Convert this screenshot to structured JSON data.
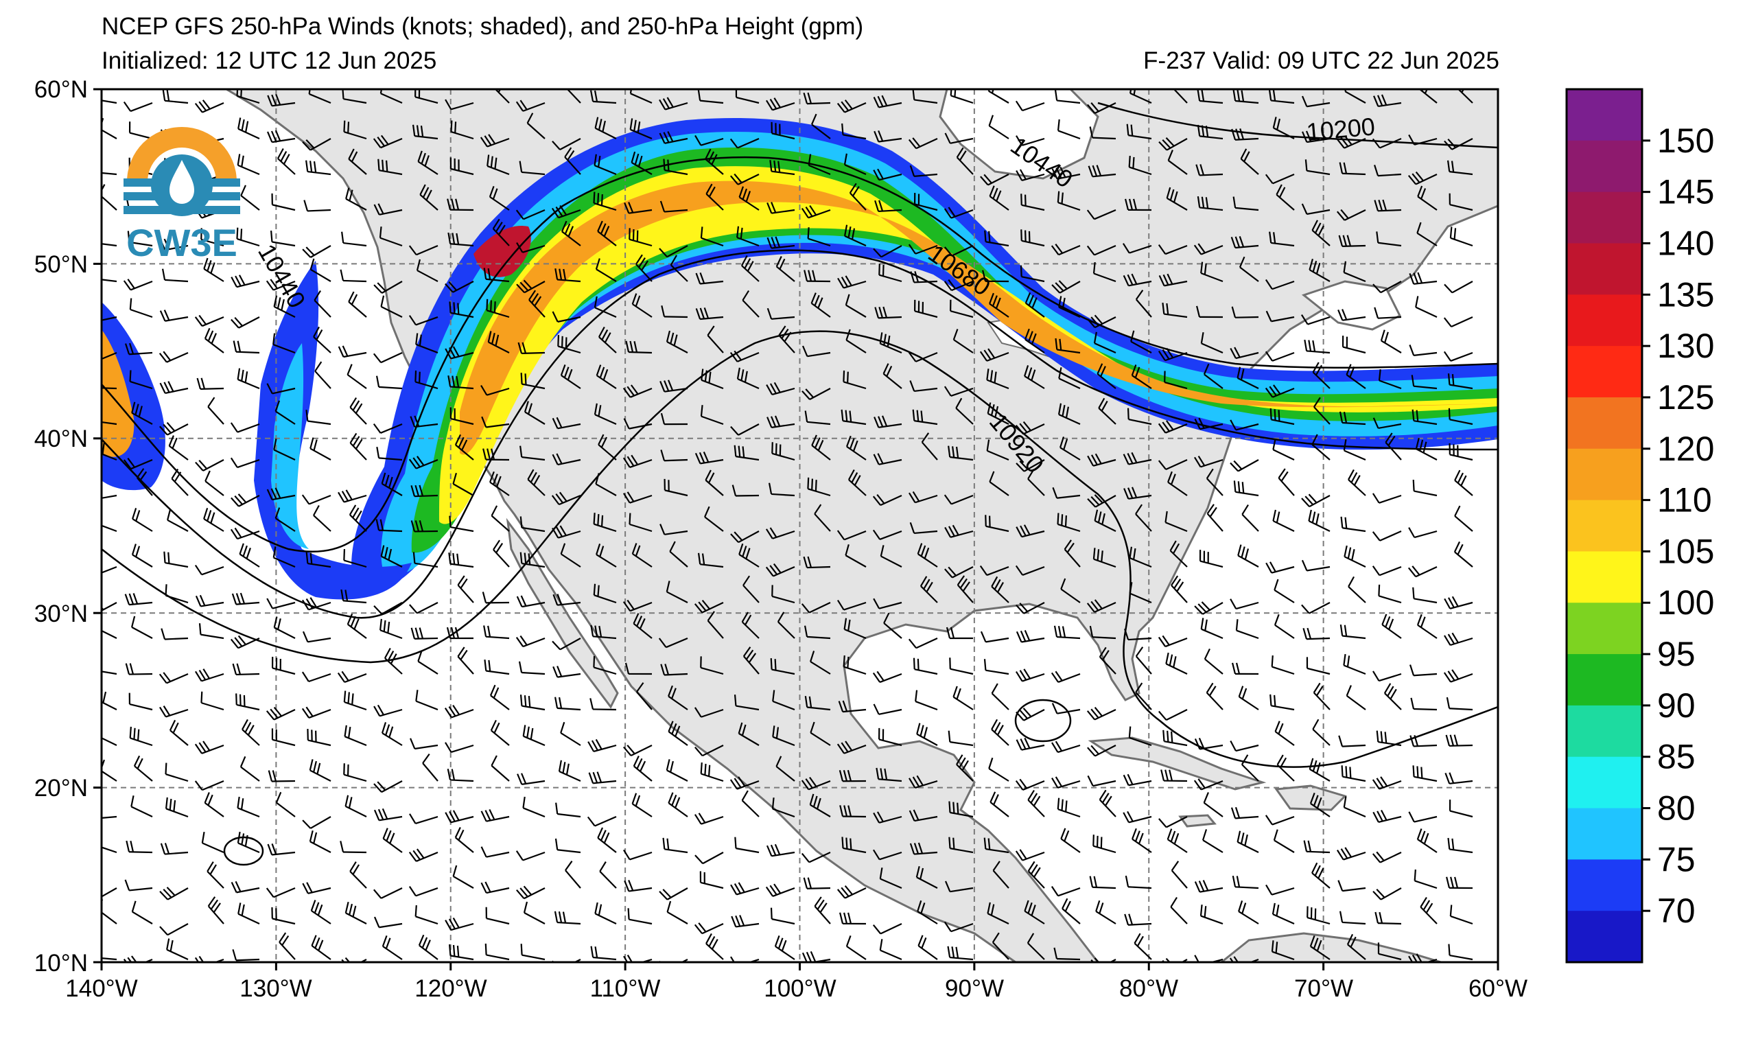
{
  "header": {
    "title": "NCEP GFS 250-hPa Winds (knots; shaded), and 250-hPa Height (gpm)",
    "init": "Initialized: 12 UTC 12 Jun 2025",
    "valid": "F-237  Valid: 09 UTC 22 Jun 2025"
  },
  "logo": {
    "text": "CW3E"
  },
  "axes": {
    "lat_labels": [
      "60°N",
      "50°N",
      "40°N",
      "30°N",
      "20°N",
      "10°N"
    ],
    "lon_labels": [
      "140°W",
      "130°W",
      "120°W",
      "110°W",
      "100°W",
      "90°W",
      "80°W",
      "70°W",
      "60°W"
    ],
    "lon_range": [
      -140,
      -60
    ],
    "lat_range": [
      10,
      60
    ],
    "gridlines": true
  },
  "contours": {
    "labels": [
      "10440",
      "10200",
      "10440",
      "10680",
      "10920"
    ]
  },
  "colorbar": {
    "ticks": [
      "150",
      "145",
      "140",
      "135",
      "130",
      "125",
      "120",
      "110",
      "105",
      "100",
      "95",
      "90",
      "85",
      "80",
      "75",
      "70"
    ],
    "colors": [
      "#7b1f8f",
      "#8e1a6e",
      "#a3174f",
      "#c0152f",
      "#e8191c",
      "#ff2a14",
      "#f27420",
      "#f7a01e",
      "#fbc31e",
      "#fff51a",
      "#7dd321",
      "#1db922",
      "#1ddba0",
      "#1ff0f0",
      "#20c4ff",
      "#1c3cf6",
      "#1818c8"
    ],
    "units": "knots"
  },
  "colors": {
    "land": "#e4e4e4",
    "ocean": "#ffffff",
    "grid": "#7a7a7a",
    "coast": "#707070"
  }
}
